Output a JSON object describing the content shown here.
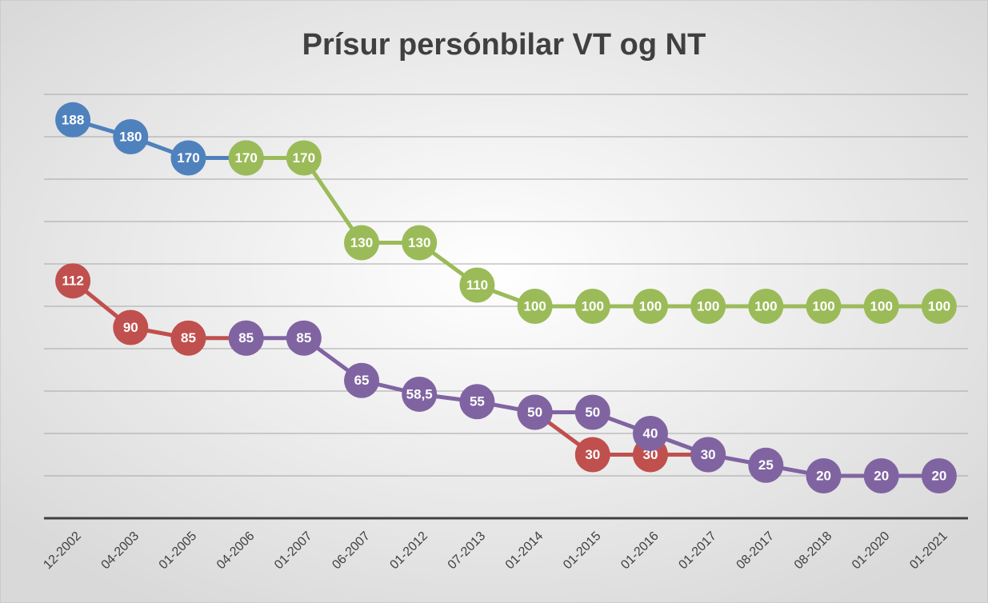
{
  "chart_data": {
    "type": "line",
    "title": "Prísur persónbilar VT og NT",
    "categories": [
      "12-2002",
      "04-2003",
      "01-2005",
      "04-2006",
      "01-2007",
      "06-2007",
      "01-2012",
      "07-2013",
      "01-2014",
      "01-2015",
      "01-2016",
      "01-2017",
      "08-2017",
      "08-2018",
      "01-2020",
      "01-2021"
    ],
    "series": [
      {
        "color": "#4f81bd",
        "values": [
          188,
          180,
          170,
          170,
          null,
          null,
          null,
          null,
          null,
          null,
          null,
          null,
          null,
          null,
          null,
          null
        ]
      },
      {
        "color": "#9bbb59",
        "values": [
          null,
          null,
          null,
          170,
          170,
          130,
          130,
          110,
          100,
          100,
          100,
          100,
          100,
          100,
          100,
          100
        ]
      },
      {
        "color": "#c0504d",
        "values": [
          112,
          90,
          85,
          85,
          null,
          null,
          null,
          null,
          50,
          30,
          30,
          30,
          null,
          null,
          null,
          null
        ]
      },
      {
        "color": "#8064a2",
        "values": [
          null,
          null,
          null,
          85,
          85,
          65,
          58.5,
          55,
          50,
          50,
          40,
          30,
          25,
          20,
          20,
          20
        ],
        "value_labels": [
          null,
          null,
          null,
          "85",
          "85",
          "65",
          "58,5",
          "55",
          "50",
          "50",
          "40",
          "30",
          "25",
          "20",
          "20",
          "20"
        ]
      }
    ],
    "ylim": [
      0,
      200
    ],
    "yticks": [
      0,
      20,
      40,
      60,
      80,
      100,
      120,
      140,
      160,
      180,
      200
    ],
    "grid": true
  }
}
